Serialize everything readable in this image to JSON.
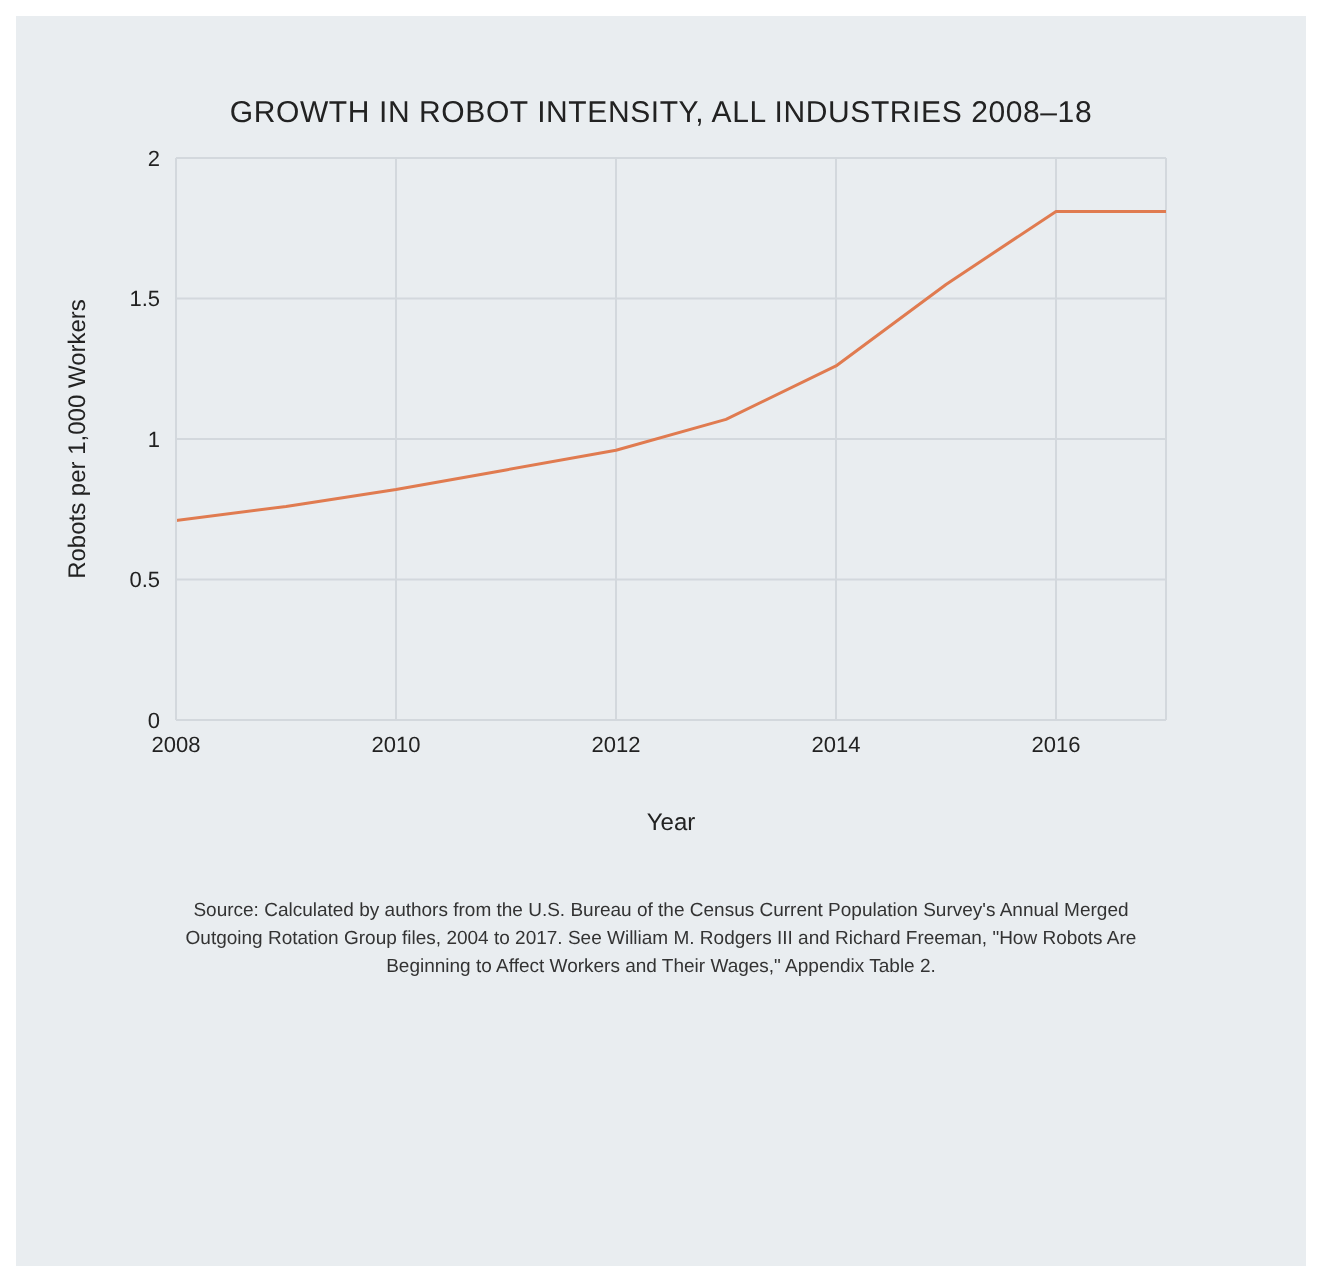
{
  "chart_data": {
    "type": "line",
    "title": "GROWTH IN ROBOT INTENSITY, ALL INDUSTRIES 2008–18",
    "xlabel": "Year",
    "ylabel": "Robots per 1,000 Workers",
    "x": [
      2008,
      2009,
      2010,
      2011,
      2012,
      2013,
      2014,
      2015,
      2016,
      2017
    ],
    "series": [
      {
        "color": "#e07b50",
        "values": [
          0.71,
          0.76,
          0.82,
          0.89,
          0.96,
          1.07,
          1.26,
          1.55,
          1.81,
          1.81
        ]
      }
    ],
    "xlim": [
      2008,
      2017
    ],
    "xticks": [
      2008,
      2010,
      2012,
      2014,
      2016
    ],
    "ylim": [
      0,
      2
    ],
    "yticks": [
      0,
      0.5,
      1,
      1.5,
      2
    ],
    "grid": true,
    "marker": "none",
    "line_style": "solid",
    "annotations": [
      "Source: Calculated by authors from the U.S. Bureau of the Census Current Population Survey's Annual Merged Outgoing Rotation Group files, 2004 to 2017. See William M. Rodgers III and Richard Freeman, \"How Robots Are Beginning to Affect Workers and Their Wages,\" Appendix Table 2."
    ]
  }
}
